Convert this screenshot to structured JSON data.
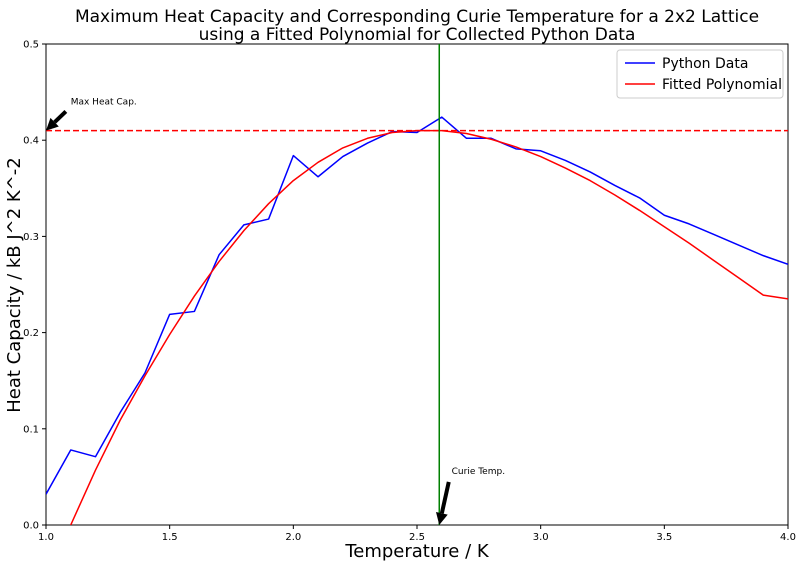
{
  "chart_data": {
    "type": "line",
    "title_line1": "Maximum Heat Capacity and Corresponding Curie Temperature for a 2x2 Lattice",
    "title_line2": "using a Fitted Polynomial for Collected Python Data",
    "xlabel": "Temperature / K",
    "ylabel": "Heat Capacity / kB J^2 K^-2",
    "xlim": [
      1.0,
      4.0
    ],
    "ylim": [
      0.0,
      0.5
    ],
    "xticks": [
      1.0,
      1.5,
      2.0,
      2.5,
      3.0,
      3.5,
      4.0
    ],
    "xtick_labels": [
      "1.0",
      "1.5",
      "2.0",
      "2.5",
      "3.0",
      "3.5",
      "4.0"
    ],
    "yticks": [
      0.0,
      0.1,
      0.2,
      0.3,
      0.4,
      0.5
    ],
    "ytick_labels": [
      "0.0",
      "0.1",
      "0.2",
      "0.3",
      "0.4",
      "0.5"
    ],
    "legend_position": "top-right",
    "series": [
      {
        "name": "Python Data",
        "color": "#0000ff",
        "x": [
          1.0,
          1.1,
          1.2,
          1.3,
          1.4,
          1.5,
          1.6,
          1.7,
          1.8,
          1.9,
          2.0,
          2.1,
          2.2,
          2.3,
          2.4,
          2.5,
          2.6,
          2.7,
          2.8,
          2.9,
          3.0,
          3.1,
          3.2,
          3.3,
          3.4,
          3.5,
          3.6,
          3.7,
          3.8,
          3.9,
          4.0
        ],
        "y": [
          0.032,
          0.078,
          0.071,
          0.117,
          0.158,
          0.219,
          0.222,
          0.281,
          0.312,
          0.318,
          0.384,
          0.362,
          0.383,
          0.397,
          0.409,
          0.408,
          0.424,
          0.402,
          0.402,
          0.391,
          0.389,
          0.379,
          0.367,
          0.353,
          0.34,
          0.322,
          0.313,
          0.302,
          0.291,
          0.28,
          0.271
        ]
      },
      {
        "name": "Fitted Polynomial",
        "color": "#ff0000",
        "x": [
          1.1,
          1.2,
          1.3,
          1.4,
          1.5,
          1.6,
          1.7,
          1.8,
          1.9,
          2.0,
          2.1,
          2.2,
          2.3,
          2.4,
          2.5,
          2.6,
          2.7,
          2.8,
          2.9,
          3.0,
          3.1,
          3.2,
          3.3,
          3.4,
          3.5,
          3.6,
          3.7,
          3.8,
          3.9,
          4.0
        ],
        "y": [
          0.0,
          0.057,
          0.109,
          0.155,
          0.198,
          0.238,
          0.274,
          0.306,
          0.334,
          0.358,
          0.377,
          0.392,
          0.402,
          0.408,
          0.41,
          0.41,
          0.407,
          0.401,
          0.393,
          0.383,
          0.371,
          0.358,
          0.343,
          0.327,
          0.31,
          0.293,
          0.275,
          0.257,
          0.239,
          0.235
        ]
      }
    ],
    "hline": {
      "y": 0.41,
      "color": "#ff0000",
      "style": "dashed"
    },
    "vline": {
      "x": 2.59,
      "color": "#008000"
    },
    "annotations": [
      {
        "text": "Max Heat Cap.",
        "point": [
          1.0,
          0.41
        ],
        "text_pos": [
          1.1,
          0.437
        ]
      },
      {
        "text": "Curie Temp.",
        "point": [
          2.59,
          0.0
        ],
        "text_pos": [
          2.64,
          0.053
        ]
      }
    ]
  }
}
